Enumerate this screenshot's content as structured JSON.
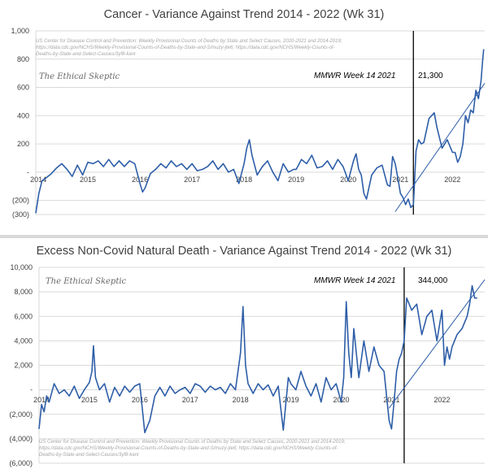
{
  "chart_data": [
    {
      "type": "line",
      "title": "Cancer  - Variance Against Trend  2014 - 2022 (Wk 31)",
      "source_note": "US Center for Disease Control and Prevention: Weekly Provisional Counts of Deaths by State and Select Causes, 2020-2021 and 2014-2019; https://data.cdc.gov/NCHS/Weekly-Provisional-Counts-of-Deaths-by-State-and-S/muzy-jte6; https://data.cdc.gov/NCHS/Weekly-Counts-of-Deaths-by-State-and-Select-Causes/3yf8-kanr",
      "brand": "The Ethical Skeptic",
      "marker_label": "MMWR Week 14  2021",
      "marker_value_label": "21,300",
      "marker_x": 2021.25,
      "ylim": [
        -300,
        1000
      ],
      "yticks": [
        1000,
        800,
        600,
        400,
        200,
        0,
        -200,
        -300
      ],
      "ytick_labels": [
        "1,000",
        "800",
        "600",
        "400",
        "200",
        "-",
        "(200)",
        "(300)"
      ],
      "xlim": [
        2014.0,
        2022.62
      ],
      "xticks": [
        2014.05,
        2015,
        2016,
        2017,
        2018,
        2019,
        2020,
        2021,
        2022
      ],
      "xtick_labels": [
        "2014",
        "2015",
        "2016",
        "2017",
        "2018",
        "2019",
        "2020",
        "2021",
        "2022"
      ],
      "trend_line": {
        "x": [
          2020.9,
          2022.62
        ],
        "y": [
          -280,
          630
        ]
      },
      "series": [
        {
          "name": "Cancer variance against trend",
          "x": [
            2014.0,
            2014.06,
            2014.12,
            2014.2,
            2014.3,
            2014.4,
            2014.5,
            2014.6,
            2014.7,
            2014.8,
            2014.9,
            2015.0,
            2015.1,
            2015.2,
            2015.3,
            2015.4,
            2015.5,
            2015.6,
            2015.7,
            2015.8,
            2015.9,
            2016.0,
            2016.05,
            2016.1,
            2016.2,
            2016.3,
            2016.4,
            2016.5,
            2016.6,
            2016.7,
            2016.8,
            2016.9,
            2017.0,
            2017.1,
            2017.2,
            2017.3,
            2017.4,
            2017.5,
            2017.6,
            2017.7,
            2017.8,
            2017.9,
            2018.0,
            2018.05,
            2018.1,
            2018.15,
            2018.25,
            2018.35,
            2018.45,
            2018.55,
            2018.65,
            2018.75,
            2018.85,
            2018.95,
            2019.0,
            2019.1,
            2019.2,
            2019.3,
            2019.4,
            2019.5,
            2019.6,
            2019.7,
            2019.8,
            2019.9,
            2020.0,
            2020.1,
            2020.15,
            2020.2,
            2020.25,
            2020.3,
            2020.35,
            2020.45,
            2020.55,
            2020.65,
            2020.75,
            2020.8,
            2020.85,
            2020.9,
            2020.95,
            2021.0,
            2021.05,
            2021.1,
            2021.15,
            2021.2,
            2021.25,
            2021.3,
            2021.35,
            2021.4,
            2021.45,
            2021.55,
            2021.65,
            2021.7,
            2021.8,
            2021.9,
            2022.0,
            2022.05,
            2022.1,
            2022.15,
            2022.2,
            2022.25,
            2022.3,
            2022.35,
            2022.4,
            2022.45,
            2022.5,
            2022.55,
            2022.58,
            2022.6
          ],
          "y": [
            -290,
            -150,
            -60,
            -40,
            -10,
            30,
            60,
            20,
            -30,
            50,
            -20,
            70,
            60,
            80,
            40,
            90,
            40,
            80,
            40,
            80,
            60,
            -80,
            -140,
            -110,
            -10,
            20,
            60,
            30,
            80,
            40,
            60,
            20,
            60,
            10,
            20,
            40,
            80,
            20,
            60,
            0,
            20,
            -80,
            60,
            170,
            230,
            120,
            -20,
            40,
            80,
            0,
            -60,
            60,
            0,
            20,
            20,
            90,
            60,
            120,
            30,
            40,
            80,
            20,
            90,
            40,
            -60,
            80,
            130,
            20,
            -20,
            -150,
            -190,
            -20,
            30,
            50,
            -90,
            -100,
            110,
            60,
            -40,
            -150,
            -180,
            -230,
            -190,
            -250,
            -230,
            150,
            230,
            200,
            210,
            380,
            420,
            320,
            170,
            230,
            140,
            140,
            70,
            110,
            200,
            400,
            350,
            440,
            420,
            580,
            520,
            650,
            790,
            870
          ]
        }
      ]
    },
    {
      "type": "line",
      "title": "Excess Non-Covid Natural Death - Variance Against Trend  2014 - 2022 (Wk 31)",
      "source_note": "US Center for Disease Control and Prevention: Weekly Provisional Counts of Deaths by State and Select Causes, 2020-2021 and 2014-2019; https://data.cdc.gov/NCHS/Weekly-Provisional-Counts-of-Deaths-by-State-and-S/muzy-jte6; https://data.cdc.gov/NCHS/Weekly-Counts-of-Deaths-by-State-and-Select-Causes/3yf8-kanr",
      "brand": "The Ethical Skeptic",
      "marker_label": "MMWR Week 14  2021",
      "marker_value_label": "344,000",
      "marker_x": 2021.25,
      "ylim": [
        -6000,
        10000
      ],
      "yticks": [
        10000,
        8000,
        6000,
        4000,
        2000,
        0,
        -2000,
        -4000,
        -6000
      ],
      "ytick_labels": [
        "10,000",
        "8,000",
        "6,000",
        "4,000",
        "2,000",
        "-",
        "(2,000)",
        "(4,000)",
        "(6,000)"
      ],
      "xlim": [
        2014.0,
        2022.85
      ],
      "xticks": [
        2014.05,
        2015,
        2016,
        2017,
        2018,
        2019,
        2020,
        2021,
        2022
      ],
      "xtick_labels": [
        "2014",
        "2015",
        "2016",
        "2017",
        "2018",
        "2019",
        "2020",
        "2021",
        "2022"
      ],
      "trend_line": {
        "x": [
          2020.95,
          2022.85
        ],
        "y": [
          -1500,
          9000
        ]
      },
      "series": [
        {
          "name": "Excess non-Covid natural death variance",
          "x": [
            2014.0,
            2014.05,
            2014.1,
            2014.15,
            2014.2,
            2014.3,
            2014.4,
            2014.5,
            2014.6,
            2014.7,
            2014.8,
            2014.9,
            2015.0,
            2015.05,
            2015.08,
            2015.12,
            2015.2,
            2015.3,
            2015.4,
            2015.5,
            2015.6,
            2015.7,
            2015.8,
            2015.9,
            2016.0,
            2016.05,
            2016.1,
            2016.2,
            2016.3,
            2016.4,
            2016.5,
            2016.6,
            2016.7,
            2016.8,
            2016.9,
            2017.0,
            2017.1,
            2017.2,
            2017.3,
            2017.4,
            2017.5,
            2017.6,
            2017.7,
            2017.8,
            2017.9,
            2018.0,
            2018.05,
            2018.1,
            2018.15,
            2018.25,
            2018.35,
            2018.45,
            2018.55,
            2018.65,
            2018.75,
            2018.85,
            2018.95,
            2019.0,
            2019.1,
            2019.2,
            2019.3,
            2019.4,
            2019.5,
            2019.6,
            2019.7,
            2019.8,
            2019.9,
            2020.0,
            2020.05,
            2020.1,
            2020.15,
            2020.2,
            2020.25,
            2020.3,
            2020.35,
            2020.45,
            2020.55,
            2020.65,
            2020.75,
            2020.85,
            2020.95,
            2021.0,
            2021.05,
            2021.1,
            2021.15,
            2021.2,
            2021.25,
            2021.3,
            2021.4,
            2021.5,
            2021.6,
            2021.7,
            2021.8,
            2021.9,
            2022.0,
            2022.05,
            2022.1,
            2022.15,
            2022.2,
            2022.25,
            2022.3,
            2022.4,
            2022.5,
            2022.55,
            2022.6,
            2022.65,
            2022.7
          ],
          "y": [
            -3200,
            -1200,
            -1800,
            -500,
            -1000,
            500,
            -300,
            0,
            -500,
            300,
            -700,
            0,
            600,
            1500,
            3600,
            1000,
            0,
            500,
            -1000,
            200,
            -500,
            300,
            -200,
            300,
            500,
            -1500,
            -3500,
            -2500,
            -500,
            200,
            -500,
            300,
            -300,
            0,
            200,
            -300,
            500,
            300,
            -200,
            300,
            0,
            200,
            -300,
            500,
            0,
            3000,
            6800,
            2000,
            500,
            -300,
            500,
            0,
            400,
            -500,
            300,
            -3300,
            1000,
            500,
            0,
            1500,
            300,
            -500,
            500,
            -1000,
            1000,
            0,
            500,
            -1000,
            1000,
            7200,
            3000,
            1000,
            5000,
            3000,
            1000,
            4000,
            1500,
            3500,
            2000,
            1500,
            -2500,
            -3200,
            -1000,
            1500,
            2500,
            3000,
            4000,
            7500,
            6500,
            7000,
            4500,
            6000,
            6500,
            4000,
            6500,
            2000,
            3500,
            2500,
            3500,
            4000,
            4500,
            5000,
            6000,
            7000,
            8500,
            7500,
            7500
          ]
        }
      ]
    }
  ]
}
